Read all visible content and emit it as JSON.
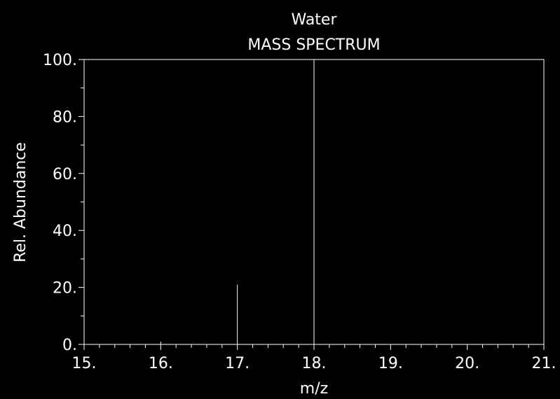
{
  "chart_data": {
    "type": "bar",
    "title": "Water",
    "subtitle": "MASS SPECTRUM",
    "xlabel": "m/z",
    "ylabel": "Rel. Abundance",
    "xlim": [
      15,
      21
    ],
    "ylim": [
      0,
      100
    ],
    "x_major_ticks": [
      15,
      16,
      17,
      18,
      19,
      20,
      21
    ],
    "x_tick_labels": [
      "15.",
      "16.",
      "17.",
      "18.",
      "19.",
      "20.",
      "21."
    ],
    "y_major_ticks": [
      0,
      20,
      40,
      60,
      80,
      100
    ],
    "y_tick_labels": [
      "0.",
      "20.",
      "40.",
      "60.",
      "80.",
      "100."
    ],
    "grid": false,
    "peaks": [
      {
        "mz": 16,
        "abundance": 1
      },
      {
        "mz": 17,
        "abundance": 21
      },
      {
        "mz": 18,
        "abundance": 100
      }
    ]
  },
  "colors": {
    "background": "#000000",
    "foreground": "#ffffff"
  }
}
